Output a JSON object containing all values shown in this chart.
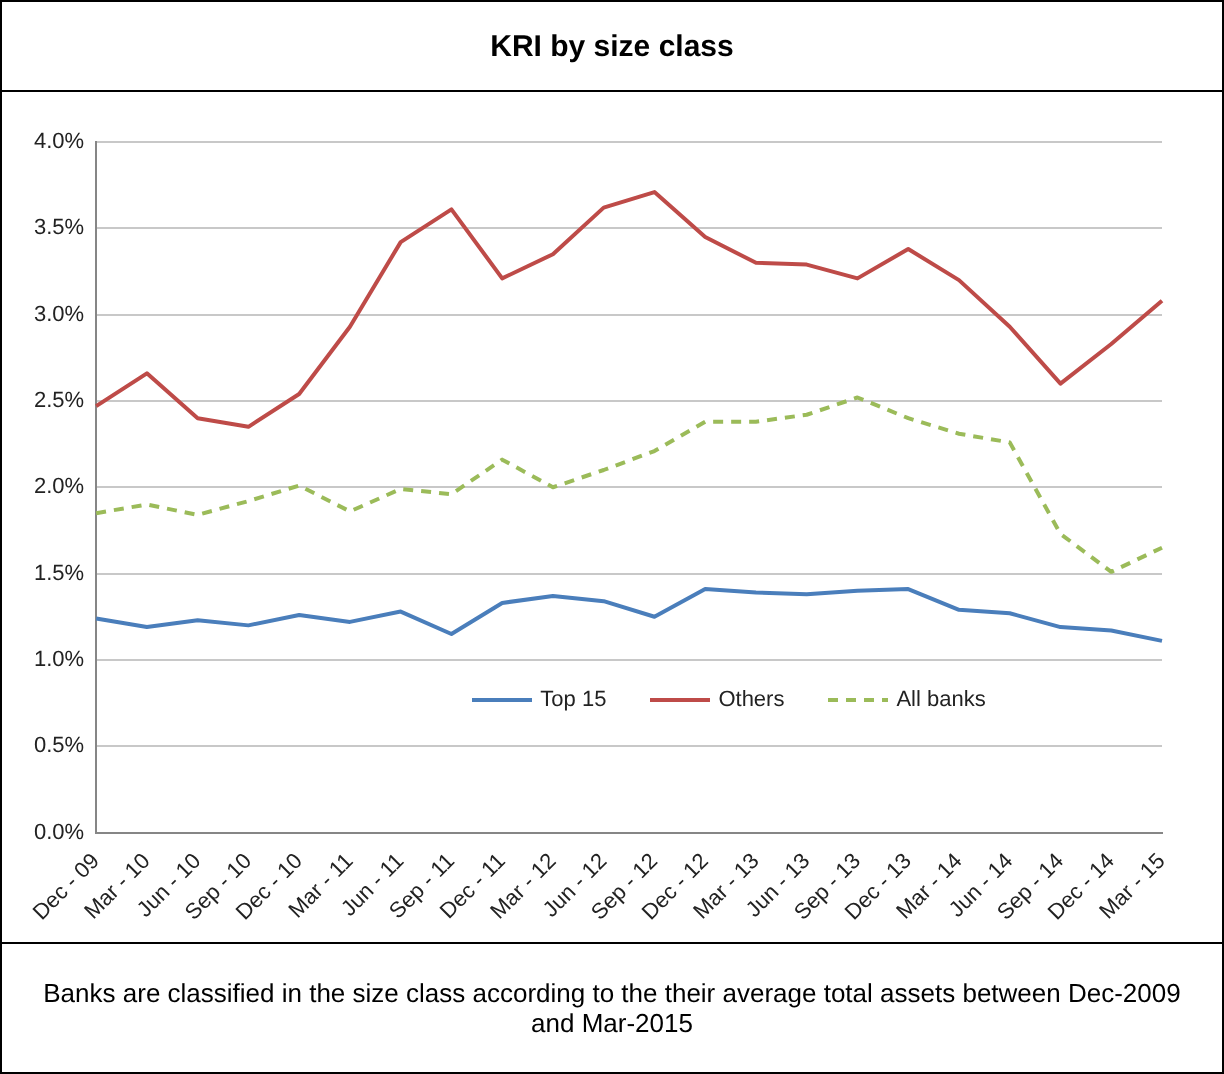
{
  "chart_data": {
    "type": "line",
    "title": "KRI by size class",
    "annotations": [
      "Banks are classified in the size class according to the their average total assets between Dec-2009 and Mar-2015"
    ],
    "categories": [
      "Dec - 09",
      "Mar - 10",
      "Jun - 10",
      "Sep - 10",
      "Dec - 10",
      "Mar - 11",
      "Jun - 11",
      "Sep - 11",
      "Dec - 11",
      "Mar - 12",
      "Jun - 12",
      "Sep - 12",
      "Dec - 12",
      "Mar - 13",
      "Jun - 13",
      "Sep - 13",
      "Dec - 13",
      "Mar - 14",
      "Jun - 14",
      "Sep - 14",
      "Dec - 14",
      "Mar - 15"
    ],
    "series": [
      {
        "name": "Top 15",
        "color": "#4a7ebb",
        "line_style": "solid",
        "values": [
          1.24,
          1.19,
          1.23,
          1.2,
          1.26,
          1.22,
          1.28,
          1.15,
          1.33,
          1.37,
          1.34,
          1.25,
          1.41,
          1.39,
          1.38,
          1.4,
          1.41,
          1.29,
          1.27,
          1.19,
          1.17,
          1.11
        ]
      },
      {
        "name": "Others",
        "color": "#be4b48",
        "line_style": "solid",
        "values": [
          2.47,
          2.66,
          2.4,
          2.35,
          2.54,
          2.93,
          3.42,
          3.61,
          3.21,
          3.35,
          3.62,
          3.71,
          3.45,
          3.3,
          3.29,
          3.21,
          3.38,
          3.2,
          2.93,
          2.6,
          2.83,
          3.08
        ]
      },
      {
        "name": "All banks",
        "color": "#9bbb59",
        "line_style": "dashed",
        "values": [
          1.85,
          1.9,
          1.84,
          1.92,
          2.01,
          1.86,
          1.99,
          1.96,
          2.16,
          2.0,
          2.1,
          2.21,
          2.38,
          2.38,
          2.42,
          2.52,
          2.4,
          2.31,
          2.26,
          1.73,
          1.51,
          1.65
        ]
      }
    ],
    "ylim": [
      0,
      4
    ],
    "yticks": [
      {
        "value": 0,
        "label": "0.0%"
      },
      {
        "value": 0.5,
        "label": "0.5%"
      },
      {
        "value": 1,
        "label": "1.0%"
      },
      {
        "value": 1.5,
        "label": "1.5%"
      },
      {
        "value": 2,
        "label": "2.0%"
      },
      {
        "value": 2.5,
        "label": "2.5%"
      },
      {
        "value": 3,
        "label": "3.0%"
      },
      {
        "value": 3.5,
        "label": "3.5%"
      },
      {
        "value": 4,
        "label": "4.0%"
      }
    ],
    "grid": "y",
    "legend": "bottom",
    "marker": "none"
  }
}
